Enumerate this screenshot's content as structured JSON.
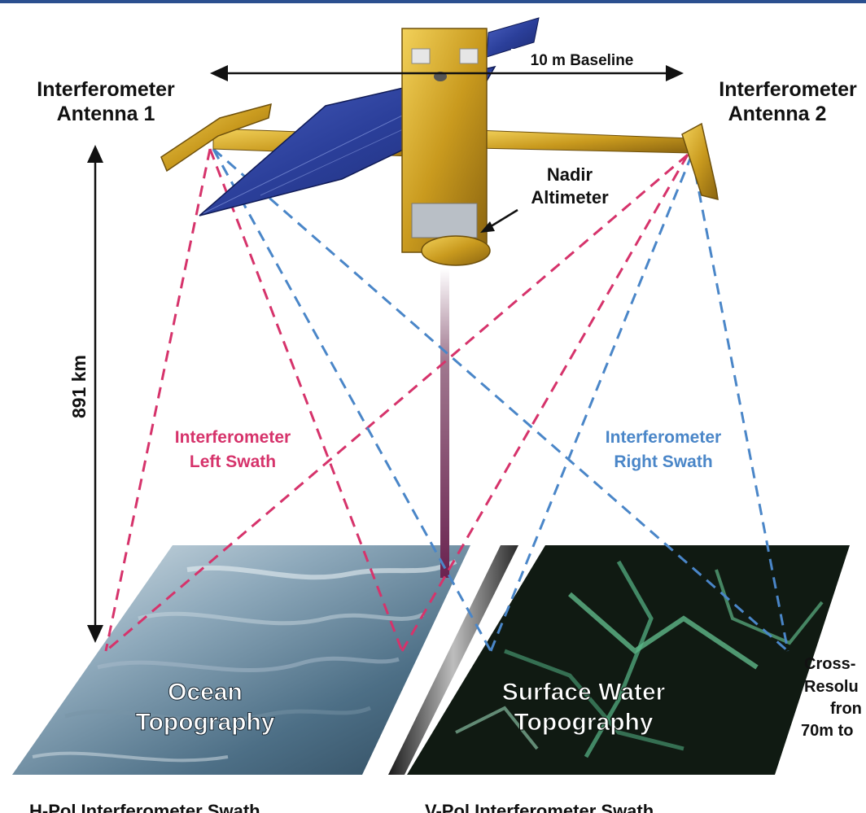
{
  "labels": {
    "antenna1_line1": "Interferometer",
    "antenna1_line2": "Antenna 1",
    "antenna2_line1": "Interferometer",
    "antenna2_line2": "Antenna 2",
    "baseline": "10 m Baseline",
    "nadir_line1": "Nadir",
    "nadir_line2": "Altimeter",
    "altitude": "891 km",
    "left_swath_line1": "Interferometer",
    "left_swath_line2": "Left Swath",
    "right_swath_line1": "Interferometer",
    "right_swath_line2": "Right Swath",
    "ocean_line1": "Ocean",
    "ocean_line2": "Topography",
    "surface_line1": "Surface Water",
    "surface_line2": "Topography",
    "cross_line1": "Cross-",
    "cross_line2": "Resolu",
    "cross_line3": "fron",
    "cross_line4": "70m to",
    "hpol_caption": "H-Pol Interferometer Swath",
    "vpol_caption": "V-Pol Interferometer Swath"
  },
  "colors": {
    "left_swath": "#d6336b",
    "right_swath": "#4a86c8",
    "header_bar": "#2b4f8f",
    "solar_panel": "#2b3f9a",
    "gold_foil": "#c99a1e",
    "ocean": "#5e7f95",
    "surface_water": "#101a12"
  }
}
